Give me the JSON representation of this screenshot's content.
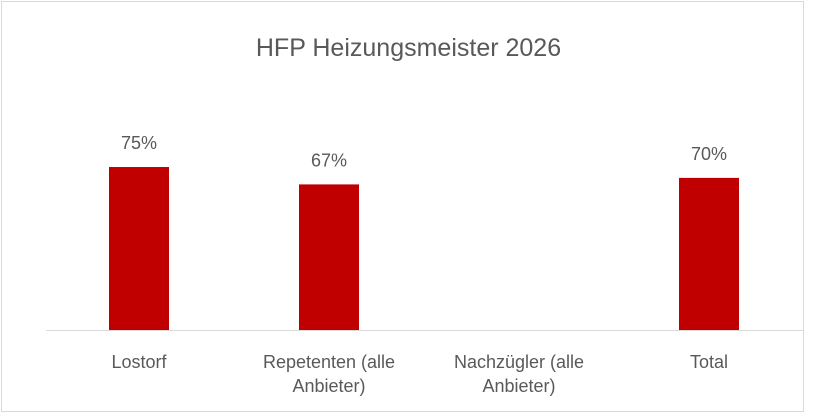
{
  "chart_data": {
    "type": "bar",
    "title": "HFP Heizungsmeister 2026",
    "categories": [
      "Lostorf",
      "Repetenten (alle Anbieter)",
      "Nachzügler (alle Anbieter)",
      "Total"
    ],
    "values": [
      75,
      67,
      null,
      70
    ],
    "value_labels": [
      "75%",
      "67%",
      null,
      "70%"
    ],
    "color": "#c00000"
  }
}
